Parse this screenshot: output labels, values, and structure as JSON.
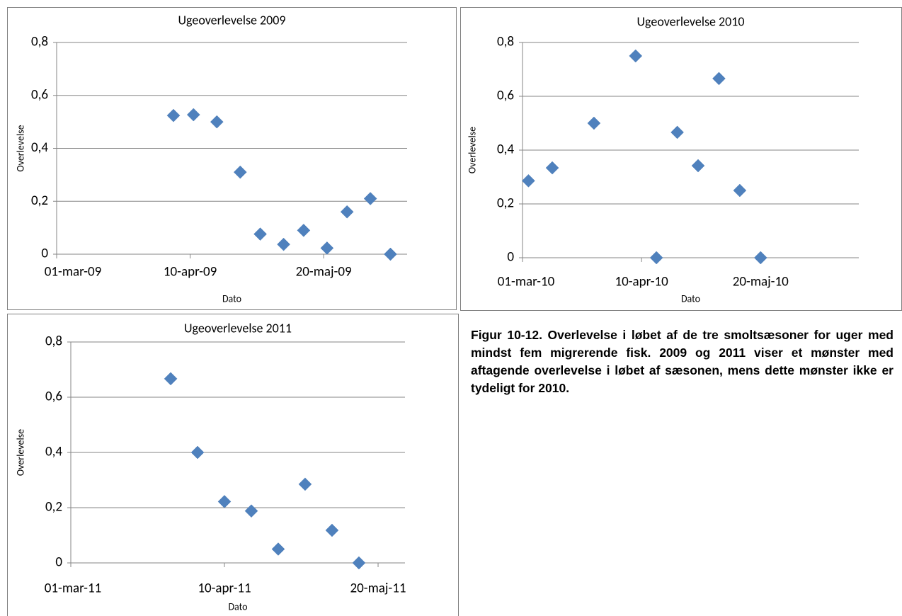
{
  "chart_data": [
    {
      "type": "scatter",
      "title": "Ugeoverlevelse 2009",
      "x_label": "Dato",
      "y_label": "Overlevelse",
      "series": [
        {
          "name": "Ugeoverlevelse 2009",
          "color": "#4f81bd",
          "x": [
            "2009-04-05",
            "2009-04-11",
            "2009-04-18",
            "2009-04-25",
            "2009-05-01",
            "2009-05-08",
            "2009-05-14",
            "2009-05-21",
            "2009-05-27",
            "2009-06-03",
            "2009-06-09"
          ],
          "values": [
            0.524,
            0.527,
            0.5,
            0.31,
            0.076,
            0.037,
            0.09,
            0.023,
            0.16,
            0.21,
            0
          ]
        }
      ],
      "xlim": [
        "2009-03-01",
        "2009-06-14"
      ],
      "xticks": [
        {
          "value": "2009-03-01",
          "label": "01-mar-09"
        },
        {
          "value": "2009-04-10",
          "label": "10-apr-09"
        },
        {
          "value": "2009-05-20",
          "label": "20-maj-09"
        }
      ],
      "ylim": [
        0,
        0.8
      ],
      "yticks": [
        0,
        {
          "value": 0.2,
          "label": "0,2"
        },
        {
          "value": 0.4,
          "label": "0,4"
        },
        {
          "value": 0.6,
          "label": "0,6"
        },
        {
          "value": 0.8,
          "label": "0,8"
        }
      ],
      "grid": true
    },
    {
      "type": "scatter",
      "title": "Ugeoverlevelse 2010",
      "x_label": "Dato",
      "y_label": "Overlevelse",
      "series": [
        {
          "name": "Ugeoverlevelse 2010",
          "color": "#4f81bd",
          "x": [
            "2010-03-03",
            "2010-03-11",
            "2010-03-25",
            "2010-04-08",
            "2010-04-15",
            "2010-04-22",
            "2010-04-29",
            "2010-05-06",
            "2010-05-13",
            "2010-05-20"
          ],
          "values": [
            0.286,
            0.334,
            0.5,
            0.75,
            0,
            0.466,
            0.342,
            0.666,
            0.25,
            0
          ]
        }
      ],
      "xlim": [
        "2010-03-01",
        "2010-06-22"
      ],
      "xticks": [
        {
          "value": "2010-03-01",
          "label": "01-mar-10"
        },
        {
          "value": "2010-04-10",
          "label": "10-apr-10"
        },
        {
          "value": "2010-05-20",
          "label": "20-maj-10"
        }
      ],
      "ylim": [
        0,
        0.8
      ],
      "yticks": [
        0,
        {
          "value": 0.2,
          "label": "0,2"
        },
        {
          "value": 0.4,
          "label": "0,4"
        },
        {
          "value": 0.6,
          "label": "0,6"
        },
        {
          "value": 0.8,
          "label": "0,8"
        }
      ],
      "grid": true
    },
    {
      "type": "scatter",
      "title": "Ugeoverlevelse 2011",
      "x_label": "Dato",
      "y_label": "Overlevelse",
      "series": [
        {
          "name": "Ugeoverlevelse 2011",
          "color": "#4f81bd",
          "x": [
            "2011-03-27",
            "2011-04-03",
            "2011-04-10",
            "2011-04-17",
            "2011-04-24",
            "2011-05-01",
            "2011-05-08",
            "2011-05-15"
          ],
          "values": [
            0.667,
            0.4,
            0.222,
            0.188,
            0.05,
            0.285,
            0.118,
            0
          ]
        }
      ],
      "xlim": [
        "2011-03-01",
        "2011-05-27"
      ],
      "xticks": [
        {
          "value": "2011-03-01",
          "label": "01-mar-11"
        },
        {
          "value": "2011-04-10",
          "label": "10-apr-11"
        },
        {
          "value": "2011-05-20",
          "label": "20-maj-11"
        }
      ],
      "ylim": [
        0,
        0.8
      ],
      "yticks": [
        0,
        {
          "value": 0.2,
          "label": "0,2"
        },
        {
          "value": 0.4,
          "label": "0,4"
        },
        {
          "value": 0.6,
          "label": "0,6"
        },
        {
          "value": 0.8,
          "label": "0,8"
        }
      ],
      "grid": true
    }
  ],
  "caption": "Figur 10-12. Overlevelse i løbet af de tre smoltsæsoner for uger med mindst fem mi­grerende fisk. 2009 og 2011 viser et mønster med aftagende overlevelse i løbet af sæso­nen, mens dette mønster ikke er tydeligt for 2010."
}
